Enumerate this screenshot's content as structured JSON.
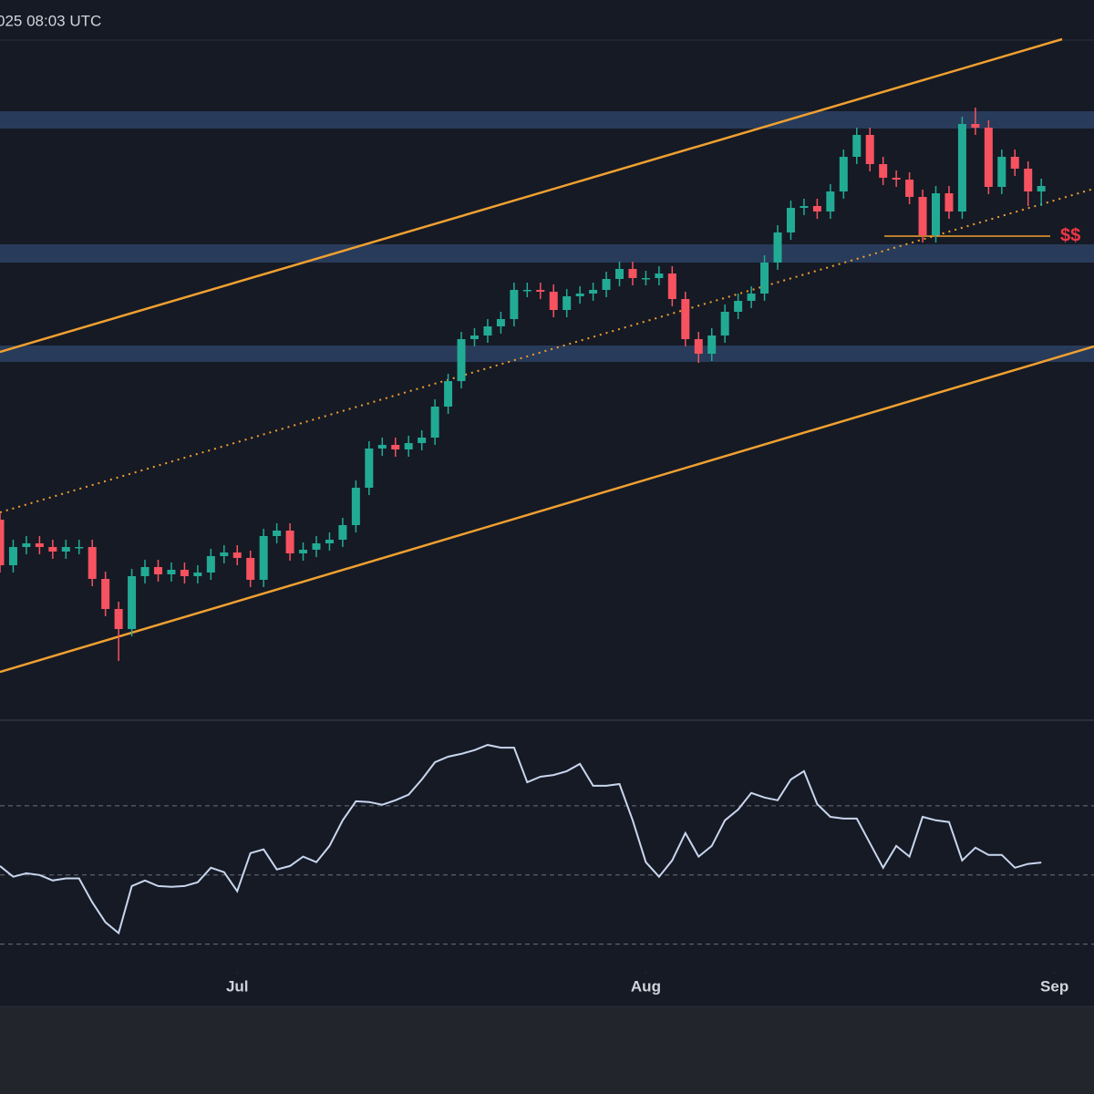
{
  "header": {
    "timestamp": "025 08:03 UTC"
  },
  "chart_data": [
    {
      "type": "candlestick",
      "x": [
        0,
        1,
        2,
        3,
        4,
        5,
        6,
        7,
        8,
        9,
        10,
        11,
        12,
        13,
        14,
        15,
        16,
        17,
        18,
        19,
        20,
        21,
        22,
        23,
        24,
        25,
        26,
        27,
        28,
        29,
        30,
        31,
        32,
        33,
        34,
        35,
        36,
        37,
        38,
        39,
        40,
        41,
        42,
        43,
        44,
        45,
        46,
        47,
        48,
        49,
        50,
        51,
        52,
        53,
        54,
        55,
        56,
        57,
        58,
        59,
        60,
        61,
        62,
        63,
        64,
        65,
        66,
        67,
        68,
        69,
        70,
        71,
        72,
        73,
        74,
        75,
        76,
        77,
        78,
        79
      ],
      "open": [
        22.0,
        17.0,
        19.0,
        19.4,
        19.0,
        18.5,
        19.0,
        19.0,
        15.5,
        12.2,
        10.0,
        15.8,
        16.8,
        16.0,
        16.5,
        15.8,
        16.2,
        18.0,
        18.4,
        17.8,
        15.4,
        20.2,
        20.8,
        18.3,
        18.7,
        19.4,
        19.8,
        21.4,
        25.5,
        29.8,
        30.2,
        29.7,
        30.4,
        31.0,
        34.4,
        37.2,
        41.8,
        42.2,
        43.2,
        44.0,
        47.2,
        47.2,
        47.0,
        45.0,
        46.5,
        46.8,
        47.2,
        48.4,
        49.5,
        48.5,
        48.5,
        49.0,
        46.2,
        41.8,
        40.2,
        42.2,
        44.8,
        46.0,
        46.8,
        50.2,
        53.5,
        56.2,
        56.4,
        55.8,
        58.0,
        61.8,
        64.2,
        61.0,
        59.5,
        59.3,
        57.4,
        53.2,
        57.8,
        55.8,
        65.4,
        65.0,
        58.5,
        61.8,
        60.5,
        58.0
      ],
      "high": [
        22.8,
        19.8,
        20.2,
        20.2,
        19.8,
        19.8,
        19.8,
        19.8,
        16.3,
        13.0,
        16.6,
        17.6,
        17.6,
        17.3,
        17.3,
        17.0,
        18.8,
        19.2,
        19.2,
        18.6,
        21.0,
        21.6,
        21.6,
        19.5,
        20.2,
        20.6,
        22.2,
        26.3,
        30.6,
        31.0,
        31.0,
        31.2,
        31.8,
        35.2,
        38.0,
        42.6,
        43.0,
        44.0,
        44.8,
        48.0,
        48.0,
        48.0,
        47.8,
        47.3,
        47.6,
        48.0,
        49.2,
        50.3,
        50.3,
        49.3,
        49.8,
        49.8,
        47.0,
        42.6,
        43.0,
        45.6,
        46.8,
        47.6,
        51.0,
        54.3,
        57.0,
        57.2,
        57.2,
        58.8,
        62.6,
        65.0,
        65.0,
        61.8,
        60.3,
        60.1,
        58.2,
        58.6,
        58.6,
        66.2,
        67.2,
        65.8,
        62.6,
        62.6,
        61.3,
        59.4
      ],
      "low": [
        16.2,
        16.2,
        18.2,
        18.2,
        17.7,
        17.7,
        18.2,
        14.7,
        11.4,
        6.5,
        9.2,
        15.0,
        15.2,
        15.2,
        15.0,
        15.0,
        15.4,
        17.2,
        17.0,
        14.6,
        14.6,
        19.4,
        17.5,
        17.5,
        17.9,
        18.6,
        19.0,
        20.6,
        24.7,
        29.0,
        28.9,
        28.9,
        29.6,
        30.2,
        33.6,
        36.4,
        41.0,
        41.4,
        42.4,
        43.2,
        46.4,
        46.2,
        44.2,
        44.2,
        45.7,
        46.0,
        46.4,
        47.6,
        47.7,
        47.7,
        47.7,
        45.4,
        41.0,
        39.2,
        39.4,
        41.4,
        44.0,
        45.2,
        46.0,
        49.4,
        52.7,
        55.4,
        55.0,
        55.0,
        57.2,
        61.0,
        60.2,
        58.7,
        58.5,
        56.6,
        52.4,
        52.4,
        55.0,
        55.0,
        64.2,
        57.7,
        57.7,
        59.7,
        56.4,
        56.4
      ],
      "close": [
        17.0,
        19.0,
        19.4,
        19.0,
        18.5,
        19.0,
        19.0,
        15.5,
        12.2,
        10.0,
        15.8,
        16.8,
        16.0,
        16.5,
        15.8,
        16.2,
        18.0,
        18.4,
        17.8,
        15.4,
        20.2,
        20.8,
        18.3,
        18.7,
        19.4,
        19.8,
        21.4,
        25.5,
        29.8,
        30.2,
        29.7,
        30.4,
        31.0,
        34.4,
        37.2,
        41.8,
        42.2,
        43.2,
        44.0,
        47.2,
        47.2,
        47.0,
        45.0,
        46.5,
        46.8,
        47.2,
        48.4,
        49.5,
        48.5,
        48.5,
        49.0,
        46.2,
        41.8,
        40.2,
        42.2,
        44.8,
        46.0,
        46.8,
        50.2,
        53.5,
        56.2,
        56.4,
        55.8,
        58.0,
        61.8,
        64.2,
        61.0,
        59.5,
        59.3,
        57.4,
        53.2,
        57.8,
        55.8,
        65.4,
        65.0,
        58.5,
        61.8,
        60.5,
        58.0,
        58.6
      ],
      "up_color": "#22ab94",
      "down_color": "#f7525f",
      "xlim": [
        0,
        83
      ],
      "ylim": [
        0,
        75
      ],
      "annotation": "$$"
    },
    {
      "type": "line",
      "x": [
        0,
        1,
        2,
        3,
        4,
        5,
        6,
        7,
        8,
        9,
        10,
        11,
        12,
        13,
        14,
        15,
        16,
        17,
        18,
        19,
        20,
        21,
        22,
        23,
        24,
        25,
        26,
        27,
        28,
        29,
        30,
        31,
        32,
        33,
        34,
        35,
        36,
        37,
        38,
        39,
        40,
        41,
        42,
        43,
        44,
        45,
        46,
        47,
        48,
        49,
        50,
        51,
        52,
        53,
        54,
        55,
        56,
        57,
        58,
        59,
        60,
        61,
        62,
        63,
        64,
        65,
        66,
        67,
        68,
        69,
        70,
        71,
        72,
        73,
        74,
        75,
        76,
        77,
        78,
        79
      ],
      "values": [
        52.6,
        49.5,
        50.5,
        50,
        48.4,
        49,
        49,
        42.1,
        36.3,
        33.2,
        46.8,
        48.4,
        46.8,
        46.6,
        46.8,
        47.9,
        52.1,
        50.8,
        45.3,
        56.3,
        57.4,
        51.6,
        52.6,
        55.3,
        53.7,
        58.4,
        65.8,
        71.3,
        71.1,
        70.3,
        71.6,
        73.2,
        77.6,
        82.6,
        84.2,
        85,
        86.1,
        87.6,
        86.8,
        86.8,
        76.8,
        78.4,
        78.9,
        80,
        82.1,
        75.8,
        75.8,
        76.3,
        65.8,
        53.7,
        49.5,
        54.2,
        62.1,
        55.3,
        58.4,
        65.8,
        68.9,
        73.7,
        72.4,
        71.6,
        77.6,
        80,
        70.5,
        66.8,
        66.3,
        66.3,
        59.2,
        52.1,
        58.4,
        55.3,
        66.8,
        65.8,
        65.3,
        54.2,
        57.9,
        55.8,
        55.8,
        52.1,
        53.2,
        53.6
      ],
      "color": "#c8d6ee",
      "xlim": [
        0,
        83
      ],
      "ylim": [
        22,
        95
      ],
      "hlines": [
        70,
        50,
        30
      ],
      "xticks": [
        {
          "value": 18,
          "label": "Jul"
        },
        {
          "value": 49,
          "label": "Aug"
        },
        {
          "value": 80,
          "label": "Sep"
        }
      ]
    }
  ]
}
